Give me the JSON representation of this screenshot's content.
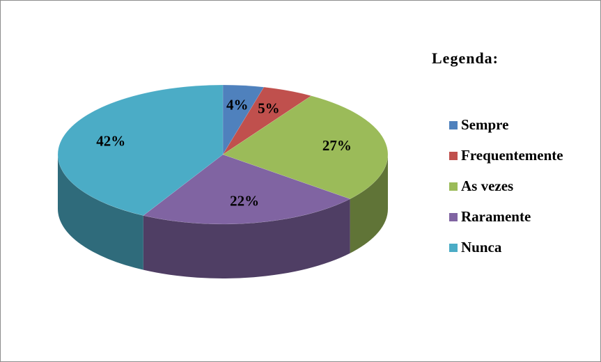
{
  "chart_data": {
    "type": "pie",
    "legend_title": "Legenda:",
    "categories": [
      "Sempre",
      "Frequentemente",
      "As vezes",
      "Raramente",
      "Nunca"
    ],
    "values": [
      4,
      5,
      27,
      22,
      42
    ],
    "value_labels": [
      "4%",
      "5%",
      "27%",
      "22%",
      "42%"
    ],
    "colors": [
      "#4f81bd",
      "#c0504d",
      "#9bbb59",
      "#8064a2",
      "#4bacc6"
    ],
    "legend": "right"
  }
}
